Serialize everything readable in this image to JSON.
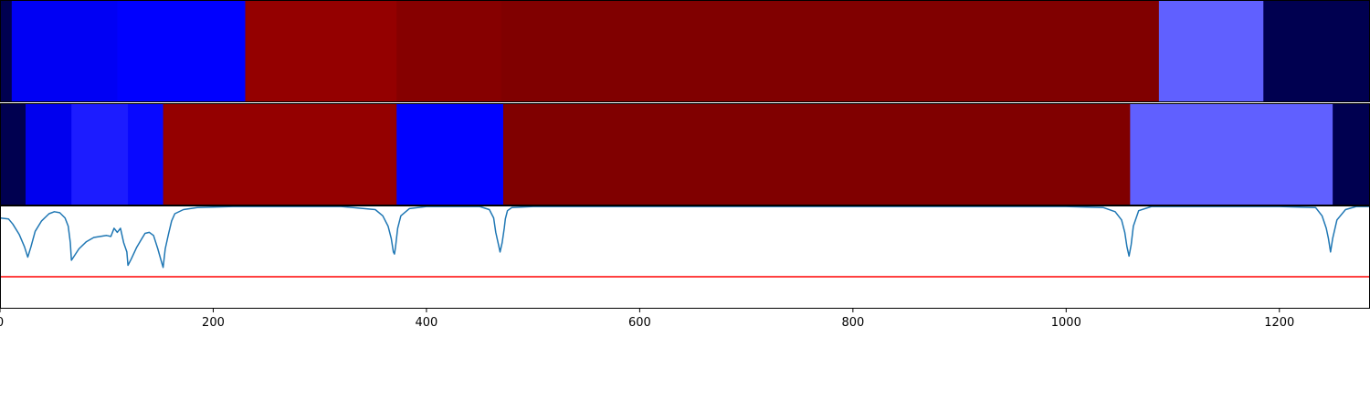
{
  "chart_data": [
    {
      "type": "heatmap",
      "name": "segmentation-track-a",
      "segments": [
        {
          "start": 0,
          "end": 11,
          "color": "#000050"
        },
        {
          "start": 11,
          "end": 110,
          "color": "#0000f4"
        },
        {
          "start": 110,
          "end": 230,
          "color": "#0000ff"
        },
        {
          "start": 230,
          "end": 372,
          "color": "#940000"
        },
        {
          "start": 372,
          "end": 470,
          "color": "#860000"
        },
        {
          "start": 470,
          "end": 1087,
          "color": "#800000"
        },
        {
          "start": 1087,
          "end": 1185,
          "color": "#6060ff"
        },
        {
          "start": 1185,
          "end": 1285,
          "color": "#000050"
        }
      ]
    },
    {
      "type": "heatmap",
      "name": "segmentation-track-b",
      "segments": [
        {
          "start": 0,
          "end": 24,
          "color": "#000050"
        },
        {
          "start": 24,
          "end": 67,
          "color": "#0000ee"
        },
        {
          "start": 67,
          "end": 120,
          "color": "#1c1cff"
        },
        {
          "start": 120,
          "end": 153,
          "color": "#0808ff"
        },
        {
          "start": 153,
          "end": 372,
          "color": "#940000"
        },
        {
          "start": 372,
          "end": 472,
          "color": "#0000ff"
        },
        {
          "start": 472,
          "end": 1060,
          "color": "#800000"
        },
        {
          "start": 1060,
          "end": 1250,
          "color": "#6060ff"
        },
        {
          "start": 1250,
          "end": 1285,
          "color": "#000050"
        }
      ]
    },
    {
      "type": "line",
      "name": "boundary-score",
      "xlim": [
        0,
        1285
      ],
      "ylim": [
        0,
        1
      ],
      "xticks": [
        "0",
        "200",
        "400",
        "600",
        "800",
        "1000",
        "1200"
      ],
      "xtick_values": [
        0,
        200,
        400,
        600,
        800,
        1000,
        1200
      ],
      "line_color": "#1f77b4",
      "threshold": {
        "value": 0.31,
        "color": "#ff0000"
      },
      "series": [
        {
          "points": [
            [
              0,
              0.88
            ],
            [
              8,
              0.87
            ],
            [
              12,
              0.82
            ],
            [
              18,
              0.72
            ],
            [
              23,
              0.6
            ],
            [
              26,
              0.5
            ],
            [
              29,
              0.6
            ],
            [
              33,
              0.75
            ],
            [
              39,
              0.85
            ],
            [
              46,
              0.92
            ],
            [
              51,
              0.94
            ],
            [
              56,
              0.93
            ],
            [
              61,
              0.88
            ],
            [
              64,
              0.8
            ],
            [
              66,
              0.64
            ],
            [
              67,
              0.47
            ],
            [
              69,
              0.5
            ],
            [
              74,
              0.58
            ],
            [
              81,
              0.65
            ],
            [
              88,
              0.69
            ],
            [
              94,
              0.7
            ],
            [
              100,
              0.71
            ],
            [
              104,
              0.7
            ],
            [
              107,
              0.78
            ],
            [
              110,
              0.74
            ],
            [
              113,
              0.78
            ],
            [
              116,
              0.64
            ],
            [
              119,
              0.55
            ],
            [
              120,
              0.42
            ],
            [
              123,
              0.48
            ],
            [
              128,
              0.59
            ],
            [
              133,
              0.68
            ],
            [
              136,
              0.73
            ],
            [
              140,
              0.74
            ],
            [
              144,
              0.71
            ],
            [
              148,
              0.58
            ],
            [
              151,
              0.47
            ],
            [
              153,
              0.4
            ],
            [
              155,
              0.58
            ],
            [
              158,
              0.72
            ],
            [
              161,
              0.85
            ],
            [
              164,
              0.92
            ],
            [
              172,
              0.96
            ],
            [
              185,
              0.98
            ],
            [
              220,
              0.99
            ],
            [
              320,
              0.99
            ],
            [
              352,
              0.96
            ],
            [
              359,
              0.9
            ],
            [
              364,
              0.8
            ],
            [
              367,
              0.68
            ],
            [
              369,
              0.55
            ],
            [
              370,
              0.53
            ],
            [
              371,
              0.6
            ],
            [
              373,
              0.78
            ],
            [
              376,
              0.9
            ],
            [
              384,
              0.97
            ],
            [
              400,
              0.99
            ],
            [
              450,
              0.99
            ],
            [
              459,
              0.96
            ],
            [
              463,
              0.88
            ],
            [
              465,
              0.74
            ],
            [
              468,
              0.6
            ],
            [
              469,
              0.55
            ],
            [
              471,
              0.64
            ],
            [
              473,
              0.78
            ],
            [
              474,
              0.87
            ],
            [
              476,
              0.95
            ],
            [
              480,
              0.98
            ],
            [
              500,
              0.99
            ],
            [
              1000,
              0.99
            ],
            [
              1035,
              0.98
            ],
            [
              1046,
              0.94
            ],
            [
              1052,
              0.86
            ],
            [
              1055,
              0.74
            ],
            [
              1057,
              0.6
            ],
            [
              1059,
              0.51
            ],
            [
              1061,
              0.62
            ],
            [
              1063,
              0.8
            ],
            [
              1068,
              0.95
            ],
            [
              1080,
              0.99
            ],
            [
              1200,
              0.99
            ],
            [
              1234,
              0.98
            ],
            [
              1240,
              0.9
            ],
            [
              1244,
              0.78
            ],
            [
              1246,
              0.68
            ],
            [
              1248,
              0.55
            ],
            [
              1250,
              0.68
            ],
            [
              1254,
              0.86
            ],
            [
              1262,
              0.96
            ],
            [
              1272,
              0.99
            ],
            [
              1285,
              0.99
            ]
          ]
        }
      ]
    }
  ]
}
